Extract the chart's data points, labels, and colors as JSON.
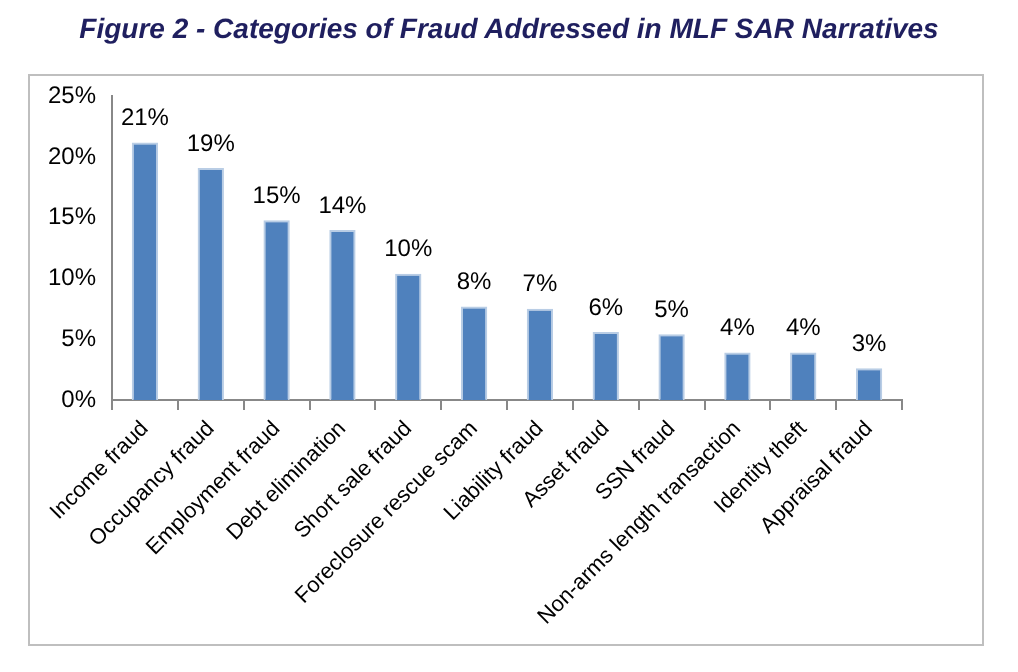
{
  "chart_data": {
    "type": "bar",
    "title": "Figure 2 - Categories of Fraud Addressed in MLF SAR Narratives",
    "categories": [
      "Income fraud",
      "Occupancy fraud",
      "Employment fraud",
      "Debt elimination",
      "Short sale fraud",
      "Foreclosure rescue scam",
      "Liability fraud",
      "Asset fraud",
      "SSN fraud",
      "Non-arms length transaction",
      "Identity theft",
      "Appraisal fraud"
    ],
    "values": [
      21.2,
      19.1,
      14.8,
      14.0,
      10.4,
      7.7,
      7.5,
      5.6,
      5.4,
      3.9,
      3.9,
      2.6
    ],
    "value_labels": [
      "21%",
      "19%",
      "15%",
      "14%",
      "10%",
      "8%",
      "7%",
      "6%",
      "5%",
      "4%",
      "4%",
      "3%"
    ],
    "color": "#4f81bd",
    "ylim": [
      0,
      25
    ],
    "yticks": [
      {
        "value": 0,
        "label": "0%"
      },
      {
        "value": 5,
        "label": "5%"
      },
      {
        "value": 10,
        "label": "10%"
      },
      {
        "value": 15,
        "label": "15%"
      },
      {
        "value": 20,
        "label": "20%"
      },
      {
        "value": 25,
        "label": "25%"
      }
    ],
    "grid": false,
    "legend": false
  }
}
